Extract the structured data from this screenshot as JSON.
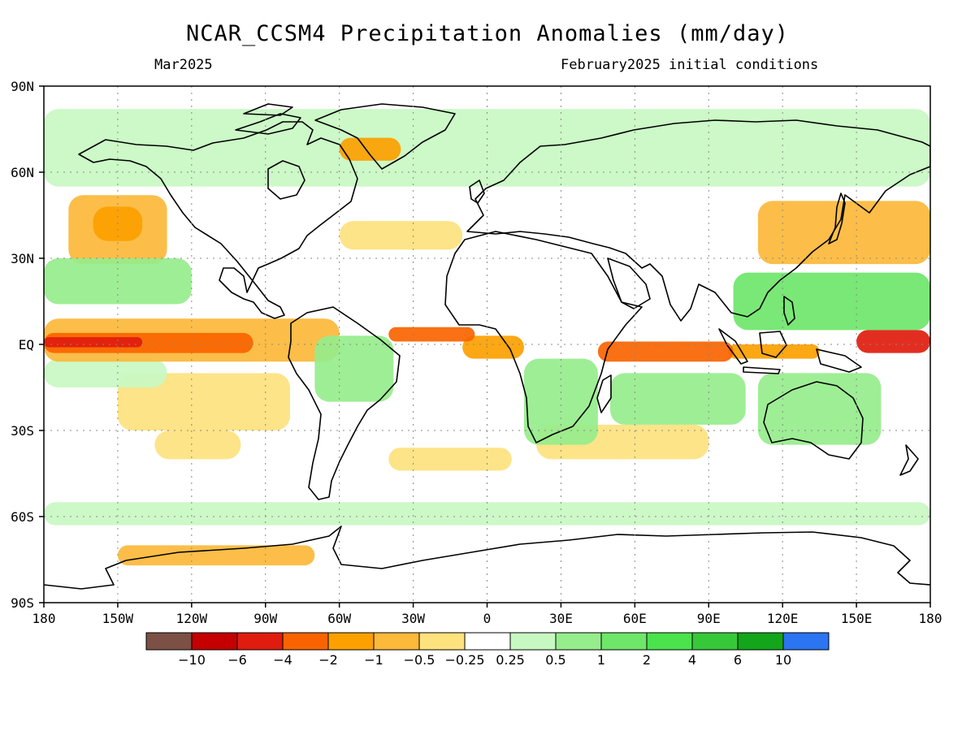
{
  "header": {
    "title": "NCAR_CCSM4 Precipitation Anomalies (mm/day)",
    "valid_month": "Mar2025",
    "initial_conditions": "February2025 initial conditions"
  },
  "map": {
    "projection": "equirectangular",
    "lon_range": [
      -180,
      180
    ],
    "lat_range": [
      -90,
      90
    ],
    "gridlines": "dotted",
    "lat_ticks": [
      {
        "lat": 90,
        "label": "90N"
      },
      {
        "lat": 60,
        "label": "60N"
      },
      {
        "lat": 30,
        "label": "30N"
      },
      {
        "lat": 0,
        "label": "EQ"
      },
      {
        "lat": -30,
        "label": "30S"
      },
      {
        "lat": -60,
        "label": "60S"
      },
      {
        "lat": -90,
        "label": "90S"
      }
    ],
    "lon_ticks": [
      {
        "lon": -180,
        "label": "180"
      },
      {
        "lon": -150,
        "label": "150W"
      },
      {
        "lon": -120,
        "label": "120W"
      },
      {
        "lon": -90,
        "label": "90W"
      },
      {
        "lon": -60,
        "label": "60W"
      },
      {
        "lon": -30,
        "label": "30W"
      },
      {
        "lon": 0,
        "label": "0"
      },
      {
        "lon": 30,
        "label": "30E"
      },
      {
        "lon": 60,
        "label": "60E"
      },
      {
        "lon": 90,
        "label": "90E"
      },
      {
        "lon": 120,
        "label": "120E"
      },
      {
        "lon": 150,
        "label": "150E"
      },
      {
        "lon": 180,
        "label": "180"
      }
    ],
    "anomaly_regions": [
      {
        "desc": "equatorial east Pacific dry band",
        "lon": [
          -180,
          -95
        ],
        "lat": [
          -3,
          4
        ],
        "level": 4
      },
      {
        "desc": "equatorial east Pacific core",
        "lon": [
          -180,
          -140
        ],
        "lat": [
          -1,
          2.5
        ],
        "level": 5
      },
      {
        "desc": "central Pacific band",
        "lon": [
          -180,
          -60
        ],
        "lat": [
          -6,
          9
        ],
        "level": 2
      },
      {
        "desc": "north Pacific dry",
        "lon": [
          -170,
          -130
        ],
        "lat": [
          28,
          52
        ],
        "level": 2
      },
      {
        "desc": "north Pacific dry inner",
        "lon": [
          -160,
          -140
        ],
        "lat": [
          36,
          48
        ],
        "level": 3
      },
      {
        "desc": "subtropical south Pacific dry",
        "lon": [
          -150,
          -80
        ],
        "lat": [
          -30,
          -10
        ],
        "level": 1
      },
      {
        "desc": "south Pacific dry streak",
        "lon": [
          -135,
          -100
        ],
        "lat": [
          -40,
          -30
        ],
        "level": 1
      },
      {
        "desc": "Atlantic ITCZ dry",
        "lon": [
          -40,
          -5
        ],
        "lat": [
          1,
          6
        ],
        "level": 4
      },
      {
        "desc": "Gulf of Guinea dry",
        "lon": [
          -10,
          15
        ],
        "lat": [
          -5,
          3
        ],
        "level": 3
      },
      {
        "desc": "Indian Ocean equatorial dry",
        "lon": [
          45,
          100
        ],
        "lat": [
          -6,
          1
        ],
        "level": 4
      },
      {
        "desc": "maritime continent dry",
        "lon": [
          98,
          135
        ],
        "lat": [
          -5,
          0
        ],
        "level": 3
      },
      {
        "desc": "west Pacific dry core",
        "lon": [
          150,
          180
        ],
        "lat": [
          -3,
          5
        ],
        "level": 5
      },
      {
        "desc": "east Asia / NW Pacific dry",
        "lon": [
          110,
          180
        ],
        "lat": [
          28,
          50
        ],
        "level": 2
      },
      {
        "desc": "Greenland dry",
        "lon": [
          -60,
          -35
        ],
        "lat": [
          64,
          72
        ],
        "level": 3
      },
      {
        "desc": "north Atlantic dry",
        "lon": [
          -60,
          -10
        ],
        "lat": [
          33,
          43
        ],
        "level": 1
      },
      {
        "desc": "Southern Ocean dry",
        "lon": [
          -150,
          -70
        ],
        "lat": [
          -77,
          -70
        ],
        "level": 2
      },
      {
        "desc": "south Atlantic dry",
        "lon": [
          -40,
          10
        ],
        "lat": [
          -44,
          -36
        ],
        "level": 1
      },
      {
        "desc": "Indian Ocean south dry",
        "lon": [
          20,
          90
        ],
        "lat": [
          -40,
          -28
        ],
        "level": 1
      },
      {
        "desc": "Australia wet",
        "lon": [
          110,
          160
        ],
        "lat": [
          -35,
          -10
        ],
        "level": -2
      },
      {
        "desc": "maritime continent wet",
        "lon": [
          100,
          180
        ],
        "lat": [
          5,
          25
        ],
        "level": -3
      },
      {
        "desc": "Brazil wet",
        "lon": [
          -70,
          -38
        ],
        "lat": [
          -20,
          3
        ],
        "level": -2
      },
      {
        "desc": "north Pacific high-lat wet",
        "lon": [
          -180,
          180
        ],
        "lat": [
          55,
          82
        ],
        "level": -1
      },
      {
        "desc": "Hawaii region wet",
        "lon": [
          -180,
          -120
        ],
        "lat": [
          14,
          30
        ],
        "level": -2
      },
      {
        "desc": "southern Africa wet",
        "lon": [
          15,
          45
        ],
        "lat": [
          -35,
          -5
        ],
        "level": -2
      },
      {
        "desc": "south Indian Ocean wet",
        "lon": [
          50,
          105
        ],
        "lat": [
          -28,
          -10
        ],
        "level": -2
      },
      {
        "desc": "Southern Ocean wet",
        "lon": [
          -180,
          180
        ],
        "lat": [
          -63,
          -55
        ],
        "level": -1
      },
      {
        "desc": "east Pacific south wet",
        "lon": [
          -180,
          -130
        ],
        "lat": [
          -15,
          -5
        ],
        "level": -1
      }
    ]
  },
  "colorbar": {
    "colors": [
      "#7d5045",
      "#c40000",
      "#e01c0e",
      "#fa6400",
      "#fca000",
      "#fcb93a",
      "#fde27e",
      "#ffffff",
      "#c8f8c2",
      "#96ed8c",
      "#6ee66a",
      "#4ae34b",
      "#37c839",
      "#13a51a",
      "#2b74f2"
    ],
    "labels": [
      "−10",
      "−6",
      "−4",
      "−2",
      "−1",
      "−0.5",
      "−0.25",
      "0.25",
      "0.5",
      "1",
      "2",
      "4",
      "6",
      "10"
    ]
  }
}
